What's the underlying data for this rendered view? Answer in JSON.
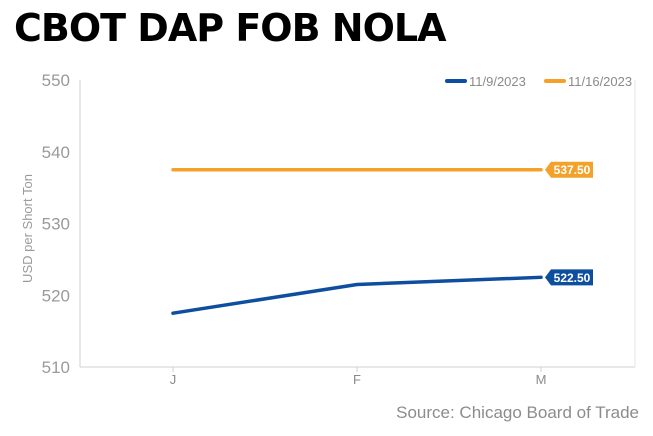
{
  "title": "CBOT DAP FOB NOLA",
  "source": "Source: Chicago Board of Trade",
  "chart_data": {
    "type": "line",
    "categories": [
      "J",
      "F",
      "M"
    ],
    "series": [
      {
        "name": "11/9/2023",
        "values": [
          517.5,
          521.5,
          522.5
        ],
        "color": "#0d4f9e",
        "end_label": "522.50"
      },
      {
        "name": "11/16/2023",
        "values": [
          537.5,
          537.5,
          537.5
        ],
        "color": "#f4a12a",
        "end_label": "537.50"
      }
    ],
    "ylabel": "USD per Short Ton",
    "ylim": [
      510,
      550
    ],
    "yticks": [
      510,
      520,
      530,
      540,
      550
    ],
    "grid": false,
    "legend": "top-right"
  }
}
